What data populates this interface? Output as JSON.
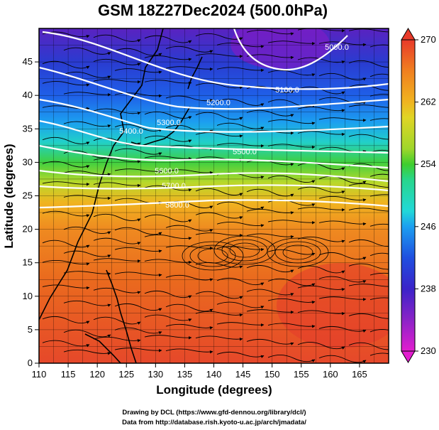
{
  "title": "GSM 18Z27Dec2024 (500.0hPa)",
  "xlabel": "Longitude (degrees)",
  "ylabel": "Latitude  (degrees)",
  "x_ticks": [
    "110",
    "115",
    "120",
    "125",
    "130",
    "135",
    "140",
    "145",
    "150",
    "155",
    "160",
    "165"
  ],
  "y_ticks": [
    "0",
    "5",
    "10",
    "15",
    "20",
    "25",
    "30",
    "35",
    "40",
    "45"
  ],
  "colorbar": {
    "ticks": [
      "230",
      "238",
      "246",
      "254",
      "262",
      "270"
    ],
    "min": 230,
    "max": 270,
    "colors": [
      "#e21ecf",
      "#8b23c7",
      "#3b23c9",
      "#1f4fe0",
      "#1c9ff0",
      "#22d8d8",
      "#27d68c",
      "#3fce2e",
      "#9fd62b",
      "#e0d525",
      "#f0b420",
      "#f08020",
      "#ea5a1e",
      "#e83a2a"
    ]
  },
  "contours": [
    {
      "label": "5000.0"
    },
    {
      "label": "5100.0"
    },
    {
      "label": "5200.0"
    },
    {
      "label": "5300.0"
    },
    {
      "label": "5400.0"
    },
    {
      "label": "5500.0"
    },
    {
      "label": "5600.0"
    },
    {
      "label": "5700.0"
    },
    {
      "label": "5800.0"
    }
  ],
  "credits": {
    "line1": "Drawing by DCL (https://www.gfd-dennou.org/library/dcl/)",
    "line2": "Data from http://database.rish.kyoto-u.ac.jp/arch/jmadata/"
  }
}
